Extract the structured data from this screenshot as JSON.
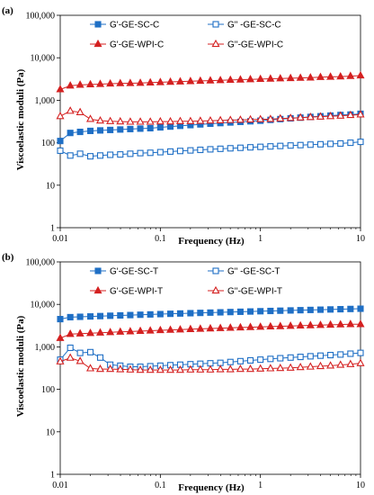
{
  "colors": {
    "blue": "#1f6fc5",
    "red": "#d42020",
    "axis": "#000000"
  },
  "chart_data": [
    {
      "type": "line",
      "panel_label": "(a)",
      "xlabel": "Frequency (Hz)",
      "ylabel": "Viscoelastic moduli (Pa)",
      "xscale": "log",
      "yscale": "log",
      "xlim": [
        0.01,
        10
      ],
      "ylim": [
        1,
        100000
      ],
      "xticks": [
        0.01,
        0.1,
        1,
        10
      ],
      "xtick_labels": [
        "0.01",
        "0.1",
        "1",
        "10"
      ],
      "yticks": [
        1,
        10,
        100,
        1000,
        10000,
        100000
      ],
      "ytick_labels": [
        "1",
        "10",
        "100",
        "1,000",
        "10,000",
        "100,000"
      ],
      "grid": false,
      "legend_position": "top",
      "series": [
        {
          "name": "G'-GE-SC-C",
          "color": "blue",
          "marker": "square",
          "filled": true,
          "x": [
            0.01,
            0.0126,
            0.0158,
            0.02,
            0.0251,
            0.0316,
            0.0398,
            0.0501,
            0.0631,
            0.0794,
            0.1,
            0.126,
            0.158,
            0.2,
            0.251,
            0.316,
            0.398,
            0.501,
            0.631,
            0.794,
            1,
            1.26,
            1.58,
            2,
            2.51,
            3.16,
            3.98,
            5.01,
            6.31,
            7.94,
            10
          ],
          "y": [
            110,
            170,
            180,
            190,
            195,
            200,
            205,
            210,
            215,
            220,
            230,
            240,
            250,
            260,
            270,
            280,
            290,
            300,
            310,
            320,
            330,
            345,
            360,
            375,
            390,
            405,
            420,
            435,
            450,
            460,
            480
          ]
        },
        {
          "name": "G\" -GE-SC-C",
          "color": "blue",
          "marker": "square",
          "filled": false,
          "x": [
            0.01,
            0.0126,
            0.0158,
            0.02,
            0.0251,
            0.0316,
            0.0398,
            0.0501,
            0.0631,
            0.0794,
            0.1,
            0.126,
            0.158,
            0.2,
            0.251,
            0.316,
            0.398,
            0.501,
            0.631,
            0.794,
            1,
            1.26,
            1.58,
            2,
            2.51,
            3.16,
            3.98,
            5.01,
            6.31,
            7.94,
            10
          ],
          "y": [
            65,
            50,
            55,
            48,
            50,
            52,
            53,
            55,
            57,
            58,
            60,
            62,
            64,
            66,
            68,
            70,
            72,
            74,
            76,
            78,
            80,
            82,
            84,
            86,
            88,
            90,
            92,
            94,
            96,
            100,
            105
          ]
        },
        {
          "name": "G'-GE-WPI-C",
          "color": "red",
          "marker": "triangle",
          "filled": true,
          "x": [
            0.01,
            0.0126,
            0.0158,
            0.02,
            0.0251,
            0.0316,
            0.0398,
            0.0501,
            0.0631,
            0.0794,
            0.1,
            0.126,
            0.158,
            0.2,
            0.251,
            0.316,
            0.398,
            0.501,
            0.631,
            0.794,
            1,
            1.26,
            1.58,
            2,
            2.51,
            3.16,
            3.98,
            5.01,
            6.31,
            7.94,
            10
          ],
          "y": [
            1800,
            2200,
            2300,
            2350,
            2400,
            2450,
            2500,
            2520,
            2550,
            2600,
            2650,
            2700,
            2750,
            2800,
            2850,
            2900,
            2950,
            3000,
            3050,
            3100,
            3150,
            3200,
            3250,
            3300,
            3350,
            3400,
            3500,
            3550,
            3600,
            3700,
            3800
          ]
        },
        {
          "name": "G''-GE-WPI-C",
          "color": "red",
          "marker": "triangle",
          "filled": false,
          "x": [
            0.01,
            0.0126,
            0.0158,
            0.02,
            0.0251,
            0.0316,
            0.0398,
            0.0501,
            0.0631,
            0.0794,
            0.1,
            0.126,
            0.158,
            0.2,
            0.251,
            0.316,
            0.398,
            0.501,
            0.631,
            0.794,
            1,
            1.26,
            1.58,
            2,
            2.51,
            3.16,
            3.98,
            5.01,
            6.31,
            7.94,
            10
          ],
          "y": [
            420,
            560,
            520,
            360,
            330,
            320,
            315,
            310,
            310,
            310,
            315,
            315,
            320,
            320,
            325,
            330,
            335,
            340,
            345,
            350,
            355,
            360,
            370,
            380,
            390,
            400,
            410,
            420,
            430,
            445,
            460
          ]
        }
      ]
    },
    {
      "type": "line",
      "panel_label": "(b)",
      "xlabel": "Frequency (Hz)",
      "ylabel": "Viscoelastic moduli  (Pa)",
      "xscale": "log",
      "yscale": "log",
      "xlim": [
        0.01,
        10
      ],
      "ylim": [
        1,
        100000
      ],
      "xticks": [
        0.01,
        0.1,
        1,
        10
      ],
      "xtick_labels": [
        "0.01",
        "0.1",
        "1",
        "10"
      ],
      "yticks": [
        1,
        10,
        100,
        1000,
        10000,
        100000
      ],
      "ytick_labels": [
        "1",
        "10",
        "100",
        "1,000",
        "10,000",
        "100,000"
      ],
      "grid": false,
      "legend_position": "top",
      "series": [
        {
          "name": "G'-GE-SC-T",
          "color": "blue",
          "marker": "square",
          "filled": true,
          "x": [
            0.01,
            0.0126,
            0.0158,
            0.02,
            0.0251,
            0.0316,
            0.0398,
            0.0501,
            0.0631,
            0.0794,
            0.1,
            0.126,
            0.158,
            0.2,
            0.251,
            0.316,
            0.398,
            0.501,
            0.631,
            0.794,
            1,
            1.26,
            1.58,
            2,
            2.51,
            3.16,
            3.98,
            5.01,
            6.31,
            7.94,
            10
          ],
          "y": [
            4500,
            5000,
            5100,
            5200,
            5300,
            5400,
            5500,
            5600,
            5700,
            5800,
            5900,
            6000,
            6100,
            6200,
            6300,
            6400,
            6500,
            6600,
            6700,
            6800,
            6900,
            7000,
            7100,
            7200,
            7300,
            7400,
            7500,
            7600,
            7700,
            7800,
            7900
          ]
        },
        {
          "name": "G\" -GE-SC-T",
          "color": "blue",
          "marker": "square",
          "filled": false,
          "x": [
            0.01,
            0.0126,
            0.0158,
            0.02,
            0.0251,
            0.0316,
            0.0398,
            0.0501,
            0.0631,
            0.0794,
            0.1,
            0.126,
            0.158,
            0.2,
            0.251,
            0.316,
            0.398,
            0.501,
            0.631,
            0.794,
            1,
            1.26,
            1.58,
            2,
            2.51,
            3.16,
            3.98,
            5.01,
            6.31,
            7.94,
            10
          ],
          "y": [
            500,
            950,
            720,
            750,
            560,
            380,
            360,
            340,
            340,
            350,
            360,
            370,
            380,
            390,
            400,
            410,
            420,
            440,
            460,
            480,
            500,
            520,
            540,
            560,
            580,
            600,
            620,
            640,
            660,
            690,
            720
          ]
        },
        {
          "name": "G'-GE-WPI-T",
          "color": "red",
          "marker": "triangle",
          "filled": true,
          "x": [
            0.01,
            0.0126,
            0.0158,
            0.02,
            0.0251,
            0.0316,
            0.0398,
            0.0501,
            0.0631,
            0.0794,
            0.1,
            0.126,
            0.158,
            0.2,
            0.251,
            0.316,
            0.398,
            0.501,
            0.631,
            0.794,
            1,
            1.26,
            1.58,
            2,
            2.51,
            3.16,
            3.98,
            5.01,
            6.31,
            7.94,
            10
          ],
          "y": [
            1600,
            2000,
            2050,
            2100,
            2150,
            2200,
            2250,
            2300,
            2350,
            2400,
            2450,
            2500,
            2550,
            2600,
            2650,
            2700,
            2750,
            2800,
            2850,
            2900,
            2950,
            3000,
            3050,
            3100,
            3150,
            3200,
            3250,
            3300,
            3350,
            3400,
            3400
          ]
        },
        {
          "name": "G''-GE-WPI-T",
          "color": "red",
          "marker": "triangle",
          "filled": false,
          "x": [
            0.01,
            0.0126,
            0.0158,
            0.02,
            0.0251,
            0.0316,
            0.0398,
            0.0501,
            0.0631,
            0.0794,
            0.1,
            0.126,
            0.158,
            0.2,
            0.251,
            0.316,
            0.398,
            0.501,
            0.631,
            0.794,
            1,
            1.26,
            1.58,
            2,
            2.51,
            3.16,
            3.98,
            5.01,
            6.31,
            7.94,
            10
          ],
          "y": [
            450,
            550,
            460,
            310,
            300,
            300,
            295,
            290,
            285,
            285,
            285,
            285,
            285,
            290,
            290,
            290,
            295,
            295,
            300,
            300,
            305,
            310,
            315,
            320,
            330,
            340,
            350,
            360,
            375,
            390,
            410
          ]
        }
      ]
    }
  ]
}
